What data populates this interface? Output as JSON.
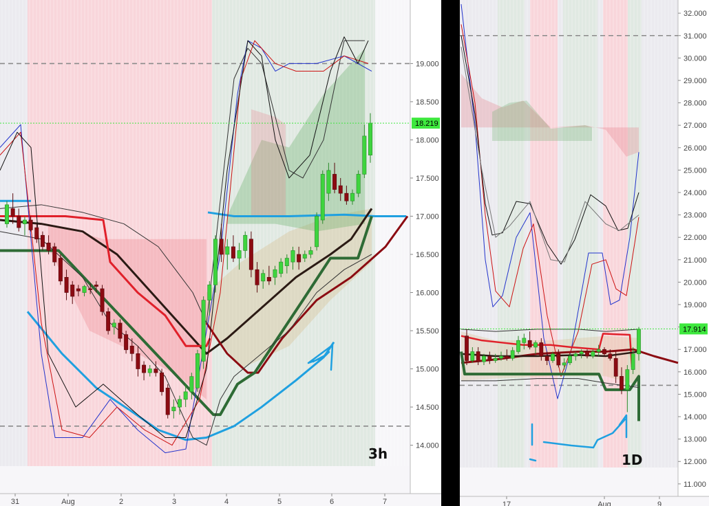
{
  "colors": {
    "bull": "#3ed43e",
    "bear": "#8b0b12",
    "blue_line": "#1fa0e0",
    "price_tag_bg": "#3ee83e",
    "dashed_level": "#8a8a8a",
    "divider": "#000000",
    "pink_band": "rgba(255,120,130,0.25)",
    "green_band": "rgba(120,180,120,0.18)",
    "grey_band": "rgba(200,200,210,0.25)"
  },
  "chart_data": [
    {
      "type": "candlestick",
      "timeframe_label": "3h",
      "x_ticks": [
        "31",
        "Aug",
        "2",
        "3",
        "4",
        "5",
        "6",
        "7"
      ],
      "y_ticks": [
        "19.000",
        "18.500",
        "18.000",
        "17.500",
        "17.000",
        "16.500",
        "16.000",
        "15.500",
        "15.000",
        "14.500",
        "14.000"
      ],
      "ylim": [
        13.87,
        19.4
      ],
      "last_price": "18.219",
      "dashed_levels": [
        19.0,
        14.25
      ],
      "candles": [
        [
          16.9,
          17.2,
          16.85,
          17.15
        ],
        [
          17.1,
          17.3,
          16.9,
          17.0
        ],
        [
          17.0,
          17.1,
          16.8,
          16.85
        ],
        [
          16.9,
          17.0,
          16.75,
          16.95
        ],
        [
          16.95,
          17.0,
          16.8,
          16.82
        ],
        [
          16.85,
          16.9,
          16.65,
          16.7
        ],
        [
          16.75,
          16.8,
          16.55,
          16.6
        ],
        [
          16.65,
          16.75,
          16.5,
          16.55
        ],
        [
          16.6,
          16.65,
          16.35,
          16.4
        ],
        [
          16.45,
          16.5,
          16.1,
          16.15
        ],
        [
          16.2,
          16.3,
          15.9,
          16.0
        ],
        [
          16.1,
          16.15,
          15.85,
          15.95
        ],
        [
          16.05,
          16.1,
          15.95,
          16.02
        ],
        [
          16.0,
          16.1,
          15.95,
          16.08
        ],
        [
          16.05,
          16.12,
          15.98,
          16.04
        ],
        [
          16.1,
          16.15,
          16.0,
          16.08
        ],
        [
          16.05,
          16.1,
          15.7,
          15.75
        ],
        [
          15.75,
          15.8,
          15.45,
          15.5
        ],
        [
          15.55,
          15.65,
          15.45,
          15.6
        ],
        [
          15.6,
          15.65,
          15.35,
          15.4
        ],
        [
          15.45,
          15.5,
          15.2,
          15.25
        ],
        [
          15.3,
          15.4,
          15.1,
          15.2
        ],
        [
          15.2,
          15.3,
          14.9,
          15.0
        ],
        [
          15.05,
          15.1,
          14.85,
          14.95
        ],
        [
          14.95,
          15.05,
          14.9,
          15.0
        ],
        [
          15.0,
          15.1,
          14.9,
          14.95
        ],
        [
          14.95,
          15.0,
          14.65,
          14.7
        ],
        [
          14.75,
          14.8,
          14.35,
          14.4
        ],
        [
          14.45,
          14.6,
          14.35,
          14.5
        ],
        [
          14.5,
          14.65,
          14.4,
          14.6
        ],
        [
          14.6,
          14.8,
          14.5,
          14.7
        ],
        [
          14.7,
          14.95,
          14.6,
          14.9
        ],
        [
          14.75,
          15.25,
          14.7,
          15.2
        ],
        [
          15.1,
          15.95,
          15.0,
          15.9
        ],
        [
          15.9,
          16.15,
          15.7,
          16.1
        ],
        [
          16.1,
          16.75,
          16.0,
          16.7
        ],
        [
          16.7,
          16.9,
          16.4,
          16.5
        ],
        [
          16.5,
          16.7,
          16.3,
          16.6
        ],
        [
          16.6,
          16.75,
          16.4,
          16.45
        ],
        [
          16.45,
          16.65,
          16.3,
          16.55
        ],
        [
          16.55,
          16.8,
          16.45,
          16.75
        ],
        [
          16.7,
          16.8,
          16.2,
          16.3
        ],
        [
          16.3,
          16.4,
          16.0,
          16.1
        ],
        [
          16.15,
          16.3,
          16.05,
          16.25
        ],
        [
          16.2,
          16.35,
          16.1,
          16.15
        ],
        [
          16.2,
          16.35,
          16.1,
          16.3
        ],
        [
          16.25,
          16.45,
          16.2,
          16.4
        ],
        [
          16.35,
          16.5,
          16.25,
          16.45
        ],
        [
          16.4,
          16.6,
          16.3,
          16.55
        ],
        [
          16.5,
          16.6,
          16.3,
          16.4
        ],
        [
          16.45,
          16.55,
          16.4,
          16.5
        ],
        [
          16.5,
          16.6,
          16.45,
          16.55
        ],
        [
          16.6,
          17.05,
          16.55,
          17.0
        ],
        [
          16.95,
          17.6,
          16.9,
          17.55
        ],
        [
          17.3,
          17.7,
          17.2,
          17.6
        ],
        [
          17.55,
          17.7,
          17.3,
          17.35
        ],
        [
          17.4,
          17.5,
          17.2,
          17.3
        ],
        [
          17.3,
          17.4,
          17.15,
          17.2
        ],
        [
          17.2,
          17.35,
          17.15,
          17.3
        ],
        [
          17.3,
          17.6,
          17.25,
          17.55
        ],
        [
          17.55,
          18.2,
          17.5,
          18.05
        ],
        [
          17.8,
          18.35,
          17.7,
          18.22
        ]
      ]
    },
    {
      "type": "candlestick",
      "timeframe_label": "1D",
      "x_ticks": [
        "17",
        "Aug",
        "9"
      ],
      "y_ticks": [
        "32.000",
        "31.000",
        "30.000",
        "29.000",
        "28.000",
        "27.000",
        "26.000",
        "25.000",
        "24.000",
        "23.000",
        "22.000",
        "21.000",
        "20.000",
        "19.000",
        "18.000",
        "17.000",
        "16.000",
        "15.000",
        "14.000",
        "13.000",
        "12.000",
        "11.000"
      ],
      "ylim": [
        10.75,
        32.25
      ],
      "last_price": "17.914",
      "dashed_levels": [
        31.0,
        15.4
      ],
      "candles": [
        [
          17.6,
          17.9,
          16.3,
          16.5
        ],
        [
          16.5,
          17.1,
          16.4,
          16.9
        ],
        [
          16.9,
          17.1,
          16.3,
          16.45
        ],
        [
          16.45,
          16.8,
          16.3,
          16.7
        ],
        [
          16.7,
          16.9,
          16.35,
          16.5
        ],
        [
          16.5,
          16.8,
          16.4,
          16.6
        ],
        [
          16.6,
          16.9,
          16.5,
          16.7
        ],
        [
          16.7,
          17.0,
          16.5,
          16.6
        ],
        [
          16.6,
          17.1,
          16.5,
          16.95
        ],
        [
          16.9,
          17.6,
          16.8,
          17.4
        ],
        [
          17.3,
          17.7,
          17.0,
          17.5
        ],
        [
          17.4,
          17.8,
          17.0,
          17.1
        ],
        [
          17.1,
          17.4,
          16.8,
          17.3
        ],
        [
          17.3,
          17.5,
          16.5,
          16.7
        ],
        [
          16.7,
          16.9,
          16.3,
          16.5
        ],
        [
          16.5,
          16.9,
          16.4,
          16.8
        ],
        [
          16.8,
          17.0,
          16.2,
          16.3
        ],
        [
          16.3,
          16.6,
          16.1,
          16.4
        ],
        [
          16.4,
          16.8,
          16.3,
          16.7
        ],
        [
          16.7,
          16.9,
          16.5,
          16.8
        ],
        [
          16.8,
          17.0,
          16.6,
          16.9
        ],
        [
          16.9,
          17.0,
          16.6,
          16.7
        ],
        [
          16.7,
          17.0,
          16.6,
          16.9
        ],
        [
          16.9,
          17.2,
          16.7,
          17.0
        ],
        [
          17.0,
          17.1,
          16.7,
          16.8
        ],
        [
          16.8,
          17.0,
          16.5,
          16.6
        ],
        [
          16.6,
          16.9,
          15.5,
          15.8
        ],
        [
          15.8,
          16.2,
          15.0,
          15.2
        ],
        [
          15.2,
          16.3,
          14.2,
          16.1
        ],
        [
          16.1,
          17.1,
          15.9,
          16.8
        ],
        [
          16.8,
          18.0,
          16.5,
          17.9
        ]
      ]
    }
  ]
}
